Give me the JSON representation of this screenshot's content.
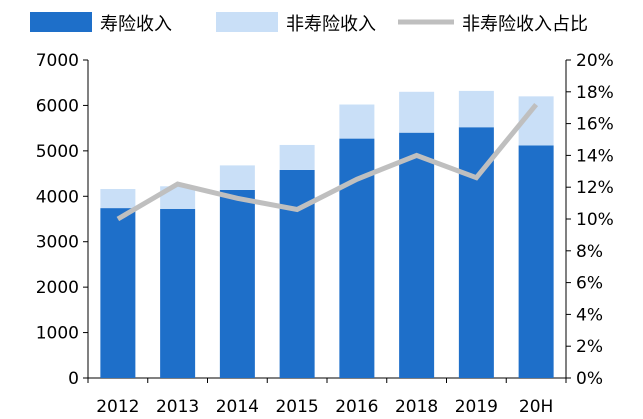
{
  "chart_data": {
    "type": "bar",
    "stacked": true,
    "categories": [
      "2012",
      "2013",
      "2014",
      "2015",
      "2016",
      "2018",
      "2019",
      "20H"
    ],
    "series": [
      {
        "name": "寿险收入",
        "type": "bar",
        "axis": "left",
        "color": "#1e6fc9",
        "values": [
          3740,
          3720,
          4140,
          4580,
          5270,
          5400,
          5520,
          5120
        ]
      },
      {
        "name": "非寿险收入",
        "type": "bar",
        "axis": "left",
        "color": "#c9dff7",
        "values": [
          420,
          500,
          540,
          550,
          750,
          900,
          800,
          1080
        ]
      },
      {
        "name": "非寿险收入占比",
        "type": "line",
        "axis": "right",
        "color": "#bfbfbf",
        "values": [
          10.0,
          12.2,
          11.3,
          10.6,
          12.5,
          14.0,
          12.6,
          17.2
        ]
      }
    ],
    "y_left": {
      "min": 0,
      "max": 7000,
      "ticks": [
        "0",
        "1000",
        "2000",
        "3000",
        "4000",
        "5000",
        "6000",
        "7000"
      ]
    },
    "y_right": {
      "min": 0,
      "max": 20,
      "unit": "%",
      "ticks": [
        "0%",
        "2%",
        "4%",
        "6%",
        "8%",
        "10%",
        "12%",
        "14%",
        "16%",
        "18%",
        "20%"
      ]
    },
    "grid": false,
    "legend_position": "top"
  }
}
